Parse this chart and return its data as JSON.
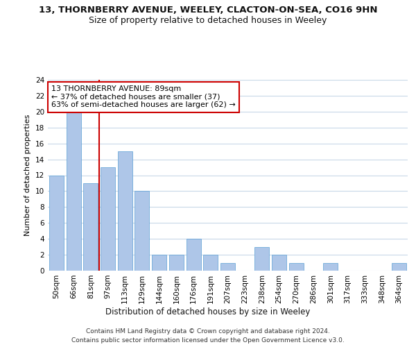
{
  "title1": "13, THORNBERRY AVENUE, WEELEY, CLACTON-ON-SEA, CO16 9HN",
  "title2": "Size of property relative to detached houses in Weeley",
  "xlabel": "Distribution of detached houses by size in Weeley",
  "ylabel": "Number of detached properties",
  "categories": [
    "50sqm",
    "66sqm",
    "81sqm",
    "97sqm",
    "113sqm",
    "129sqm",
    "144sqm",
    "160sqm",
    "176sqm",
    "191sqm",
    "207sqm",
    "223sqm",
    "238sqm",
    "254sqm",
    "270sqm",
    "286sqm",
    "301sqm",
    "317sqm",
    "333sqm",
    "348sqm",
    "364sqm"
  ],
  "values": [
    12,
    20,
    11,
    13,
    15,
    10,
    2,
    2,
    4,
    2,
    1,
    0,
    3,
    2,
    1,
    0,
    1,
    0,
    0,
    0,
    1
  ],
  "bar_color": "#aec6e8",
  "bar_edge_color": "#5a9fd4",
  "grid_color": "#c8d8e8",
  "background_color": "#ffffff",
  "annotation_text": "13 THORNBERRY AVENUE: 89sqm\n← 37% of detached houses are smaller (37)\n63% of semi-detached houses are larger (62) →",
  "annotation_box_color": "#ffffff",
  "annotation_box_edge": "#cc0000",
  "vline_x_index": 2.5,
  "vline_color": "#cc0000",
  "ylim": [
    0,
    24
  ],
  "yticks": [
    0,
    2,
    4,
    6,
    8,
    10,
    12,
    14,
    16,
    18,
    20,
    22,
    24
  ],
  "footer_line1": "Contains HM Land Registry data © Crown copyright and database right 2024.",
  "footer_line2": "Contains public sector information licensed under the Open Government Licence v3.0.",
  "title1_fontsize": 9.5,
  "title2_fontsize": 9,
  "annotation_fontsize": 8,
  "tick_fontsize": 7.5,
  "xlabel_fontsize": 8.5,
  "ylabel_fontsize": 8
}
